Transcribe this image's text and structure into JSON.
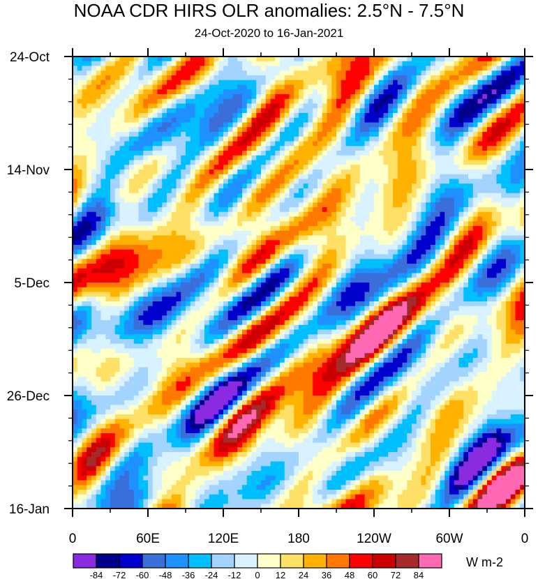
{
  "chart_data": {
    "type": "heatmap",
    "title": "NOAA CDR HIRS OLR anomalies: 2.5°N - 7.5°N",
    "subtitle": "24-Oct-2020 to 16-Jan-2021",
    "x_tick_labels": [
      "0",
      "60E",
      "120E",
      "180",
      "120W",
      "60W",
      "0"
    ],
    "x_tick_lon": [
      0,
      60,
      120,
      180,
      240,
      300,
      360
    ],
    "xlim": [
      0,
      360
    ],
    "y_tick_labels": [
      "24-Oct",
      "14-Nov",
      "5-Dec",
      "26-Dec",
      "16-Jan"
    ],
    "y_tick_days": [
      0,
      21,
      42,
      63,
      84
    ],
    "ylim_days": [
      0,
      84
    ],
    "colorbar": {
      "units": "W m-2",
      "levels": [
        -84,
        -72,
        -60,
        -48,
        -36,
        -24,
        -12,
        0,
        12,
        24,
        36,
        48,
        60,
        72,
        84
      ],
      "level_labels": [
        "-84",
        "-72",
        "-60",
        "-48",
        "-36",
        "-24",
        "-12",
        "0",
        "12",
        "24",
        "36",
        "48",
        "60",
        "72",
        "84"
      ],
      "colors": [
        "#8a2be2",
        "#00008b",
        "#0000cd",
        "#3a6ed8",
        "#1e90ff",
        "#00bfff",
        "#a3d4ff",
        "#d9f2ff",
        "#ffffc8",
        "#ffe066",
        "#ffb300",
        "#ff7800",
        "#ff0000",
        "#cc0000",
        "#a52a2a",
        "#ff69b4"
      ]
    }
  }
}
